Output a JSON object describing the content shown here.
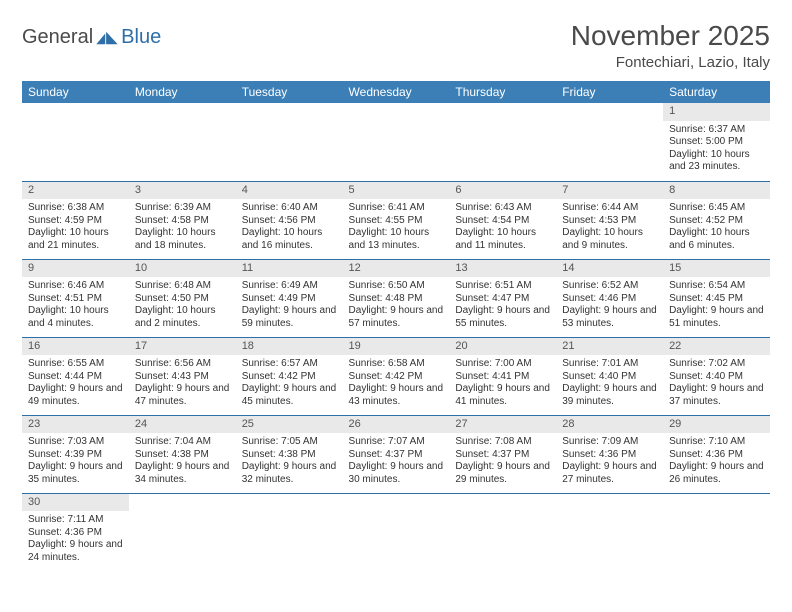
{
  "logo": {
    "part1": "General",
    "part2": "Blue"
  },
  "title": "November 2025",
  "location": "Fontechiari, Lazio, Italy",
  "colors": {
    "header_bg": "#3b7fb6",
    "header_text": "#ffffff",
    "daynum_bg": "#e9e9e9",
    "border": "#2f6fa7",
    "text": "#333333"
  },
  "weekdays": [
    "Sunday",
    "Monday",
    "Tuesday",
    "Wednesday",
    "Thursday",
    "Friday",
    "Saturday"
  ],
  "layout": {
    "first_day_column": 6,
    "days_in_month": 30
  },
  "days": {
    "1": {
      "sunrise": "6:37 AM",
      "sunset": "5:00 PM",
      "daylight": "10 hours and 23 minutes."
    },
    "2": {
      "sunrise": "6:38 AM",
      "sunset": "4:59 PM",
      "daylight": "10 hours and 21 minutes."
    },
    "3": {
      "sunrise": "6:39 AM",
      "sunset": "4:58 PM",
      "daylight": "10 hours and 18 minutes."
    },
    "4": {
      "sunrise": "6:40 AM",
      "sunset": "4:56 PM",
      "daylight": "10 hours and 16 minutes."
    },
    "5": {
      "sunrise": "6:41 AM",
      "sunset": "4:55 PM",
      "daylight": "10 hours and 13 minutes."
    },
    "6": {
      "sunrise": "6:43 AM",
      "sunset": "4:54 PM",
      "daylight": "10 hours and 11 minutes."
    },
    "7": {
      "sunrise": "6:44 AM",
      "sunset": "4:53 PM",
      "daylight": "10 hours and 9 minutes."
    },
    "8": {
      "sunrise": "6:45 AM",
      "sunset": "4:52 PM",
      "daylight": "10 hours and 6 minutes."
    },
    "9": {
      "sunrise": "6:46 AM",
      "sunset": "4:51 PM",
      "daylight": "10 hours and 4 minutes."
    },
    "10": {
      "sunrise": "6:48 AM",
      "sunset": "4:50 PM",
      "daylight": "10 hours and 2 minutes."
    },
    "11": {
      "sunrise": "6:49 AM",
      "sunset": "4:49 PM",
      "daylight": "9 hours and 59 minutes."
    },
    "12": {
      "sunrise": "6:50 AM",
      "sunset": "4:48 PM",
      "daylight": "9 hours and 57 minutes."
    },
    "13": {
      "sunrise": "6:51 AM",
      "sunset": "4:47 PM",
      "daylight": "9 hours and 55 minutes."
    },
    "14": {
      "sunrise": "6:52 AM",
      "sunset": "4:46 PM",
      "daylight": "9 hours and 53 minutes."
    },
    "15": {
      "sunrise": "6:54 AM",
      "sunset": "4:45 PM",
      "daylight": "9 hours and 51 minutes."
    },
    "16": {
      "sunrise": "6:55 AM",
      "sunset": "4:44 PM",
      "daylight": "9 hours and 49 minutes."
    },
    "17": {
      "sunrise": "6:56 AM",
      "sunset": "4:43 PM",
      "daylight": "9 hours and 47 minutes."
    },
    "18": {
      "sunrise": "6:57 AM",
      "sunset": "4:42 PM",
      "daylight": "9 hours and 45 minutes."
    },
    "19": {
      "sunrise": "6:58 AM",
      "sunset": "4:42 PM",
      "daylight": "9 hours and 43 minutes."
    },
    "20": {
      "sunrise": "7:00 AM",
      "sunset": "4:41 PM",
      "daylight": "9 hours and 41 minutes."
    },
    "21": {
      "sunrise": "7:01 AM",
      "sunset": "4:40 PM",
      "daylight": "9 hours and 39 minutes."
    },
    "22": {
      "sunrise": "7:02 AM",
      "sunset": "4:40 PM",
      "daylight": "9 hours and 37 minutes."
    },
    "23": {
      "sunrise": "7:03 AM",
      "sunset": "4:39 PM",
      "daylight": "9 hours and 35 minutes."
    },
    "24": {
      "sunrise": "7:04 AM",
      "sunset": "4:38 PM",
      "daylight": "9 hours and 34 minutes."
    },
    "25": {
      "sunrise": "7:05 AM",
      "sunset": "4:38 PM",
      "daylight": "9 hours and 32 minutes."
    },
    "26": {
      "sunrise": "7:07 AM",
      "sunset": "4:37 PM",
      "daylight": "9 hours and 30 minutes."
    },
    "27": {
      "sunrise": "7:08 AM",
      "sunset": "4:37 PM",
      "daylight": "9 hours and 29 minutes."
    },
    "28": {
      "sunrise": "7:09 AM",
      "sunset": "4:36 PM",
      "daylight": "9 hours and 27 minutes."
    },
    "29": {
      "sunrise": "7:10 AM",
      "sunset": "4:36 PM",
      "daylight": "9 hours and 26 minutes."
    },
    "30": {
      "sunrise": "7:11 AM",
      "sunset": "4:36 PM",
      "daylight": "9 hours and 24 minutes."
    }
  },
  "labels": {
    "sunrise": "Sunrise: ",
    "sunset": "Sunset: ",
    "daylight": "Daylight: "
  }
}
